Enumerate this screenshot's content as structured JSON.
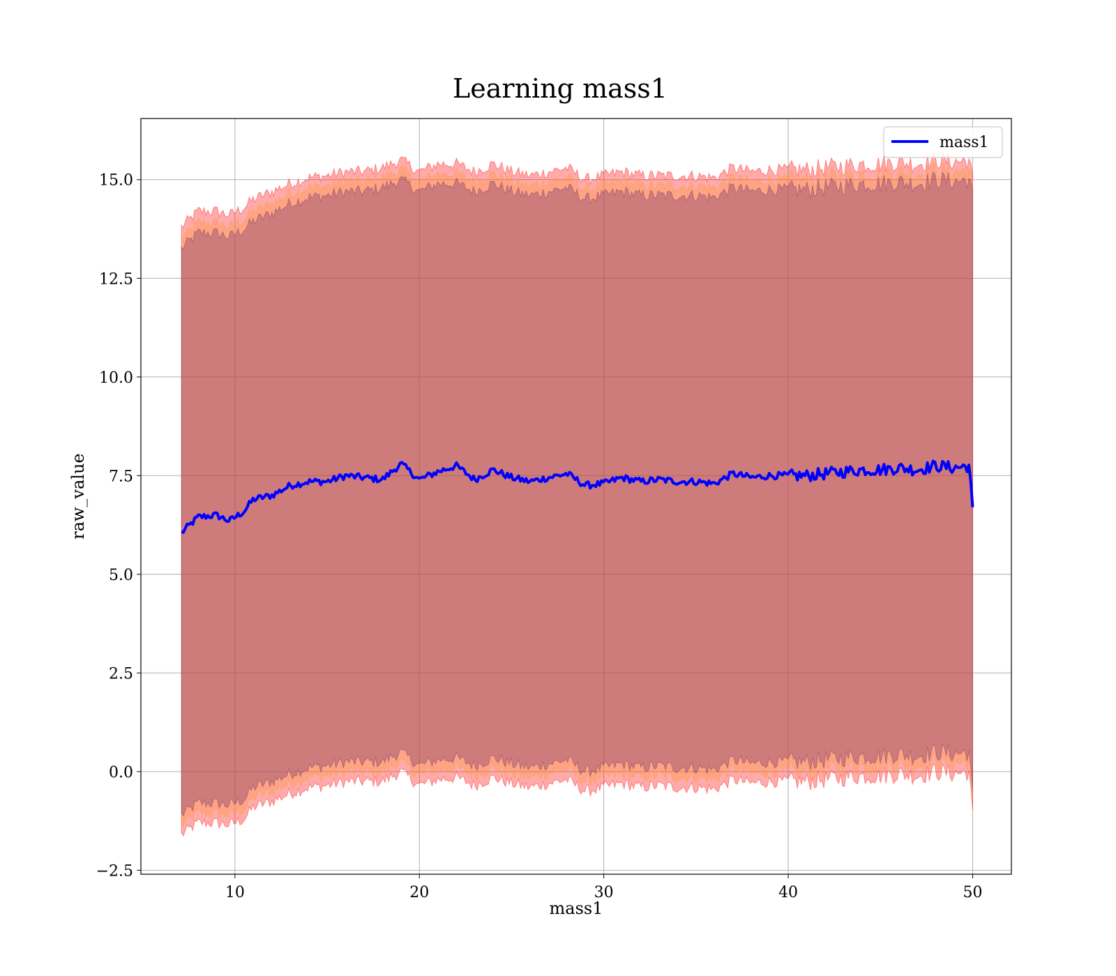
{
  "chart_data": {
    "type": "line",
    "title": "Learning mass1",
    "xlabel": "mass1",
    "ylabel": "raw_value",
    "xlim": [
      4.9,
      52.1
    ],
    "ylim": [
      -2.6,
      16.55
    ],
    "x_ticks": [
      10,
      20,
      30,
      40,
      50
    ],
    "x_tick_labels": [
      "10",
      "20",
      "30",
      "40",
      "50"
    ],
    "y_ticks": [
      -2.5,
      0.0,
      2.5,
      5.0,
      7.5,
      10.0,
      12.5,
      15.0
    ],
    "y_tick_labels": [
      "−2.5",
      "0.0",
      "2.5",
      "5.0",
      "7.5",
      "10.0",
      "12.5",
      "15.0"
    ],
    "grid": true,
    "legend_position": "top-right",
    "series": [
      {
        "name": "mass1",
        "color": "#0000ff",
        "x": [
          7.1,
          8.0,
          9.0,
          9.7,
          10.5,
          11.0,
          12.0,
          13.0,
          14.0,
          15.0,
          16.0,
          17.0,
          18.0,
          19.0,
          20.0,
          21.0,
          22.0,
          23.0,
          24.0,
          25.0,
          26.0,
          27.0,
          28.0,
          29.0,
          30.0,
          31.0,
          32.0,
          33.0,
          34.0,
          35.0,
          36.0,
          37.0,
          38.0,
          39.0,
          40.0,
          41.0,
          42.0,
          43.0,
          44.0,
          45.0,
          46.0,
          47.0,
          48.0,
          49.0,
          49.8,
          50.0
        ],
        "values": [
          6.05,
          6.45,
          6.5,
          6.35,
          6.6,
          6.9,
          7.0,
          7.25,
          7.35,
          7.35,
          7.5,
          7.45,
          7.4,
          7.8,
          7.4,
          7.6,
          7.75,
          7.4,
          7.65,
          7.45,
          7.35,
          7.45,
          7.55,
          7.25,
          7.3,
          7.45,
          7.35,
          7.4,
          7.35,
          7.35,
          7.3,
          7.55,
          7.45,
          7.5,
          7.5,
          7.5,
          7.55,
          7.6,
          7.65,
          7.65,
          7.7,
          7.65,
          7.75,
          7.7,
          7.75,
          6.7
        ]
      }
    ],
    "bands": [
      {
        "color": "#ff0000",
        "x": [
          7.1,
          8.0,
          9.0,
          9.7,
          10.5,
          11.0,
          12.0,
          13.0,
          14.0,
          15.0,
          16.0,
          17.0,
          18.0,
          19.0,
          20.0,
          21.0,
          22.0,
          23.0,
          24.0,
          25.0,
          26.0,
          27.0,
          28.0,
          29.0,
          30.0,
          31.0,
          32.0,
          33.0,
          34.0,
          35.0,
          36.0,
          37.0,
          38.0,
          39.0,
          40.0,
          41.0,
          42.0,
          43.0,
          44.0,
          45.0,
          46.0,
          47.0,
          48.0,
          49.0,
          49.8,
          50.0
        ],
        "upper": [
          13.8,
          14.2,
          14.2,
          14.1,
          14.3,
          14.5,
          14.7,
          14.9,
          15.05,
          15.1,
          15.2,
          15.2,
          15.3,
          15.5,
          15.2,
          15.4,
          15.4,
          15.2,
          15.4,
          15.2,
          15.1,
          15.2,
          15.3,
          15.0,
          15.1,
          15.2,
          15.1,
          15.1,
          15.1,
          15.1,
          15.05,
          15.3,
          15.2,
          15.25,
          15.25,
          15.25,
          15.3,
          15.35,
          15.4,
          15.4,
          15.45,
          15.4,
          15.5,
          15.45,
          15.5,
          15.0
        ],
        "lower": [
          -1.6,
          -1.3,
          -1.3,
          -1.35,
          -1.2,
          -0.9,
          -0.75,
          -0.55,
          -0.4,
          -0.35,
          -0.25,
          -0.25,
          -0.25,
          0.0,
          -0.35,
          -0.2,
          -0.15,
          -0.35,
          -0.15,
          -0.3,
          -0.4,
          -0.3,
          -0.2,
          -0.5,
          -0.4,
          -0.3,
          -0.4,
          -0.35,
          -0.4,
          -0.4,
          -0.45,
          -0.2,
          -0.3,
          -0.25,
          -0.25,
          -0.25,
          -0.2,
          -0.15,
          -0.1,
          -0.1,
          -0.05,
          -0.1,
          0.0,
          -0.05,
          0.0,
          -1.1
        ]
      },
      {
        "color": "#ff9933",
        "x": [
          7.1,
          8.0,
          9.0,
          9.7,
          10.5,
          11.0,
          12.0,
          13.0,
          14.0,
          15.0,
          16.0,
          17.0,
          18.0,
          19.0,
          20.0,
          21.0,
          22.0,
          23.0,
          24.0,
          25.0,
          26.0,
          27.0,
          28.0,
          29.0,
          30.0,
          31.0,
          32.0,
          33.0,
          34.0,
          35.0,
          36.0,
          37.0,
          38.0,
          39.0,
          40.0,
          41.0,
          42.0,
          43.0,
          44.0,
          45.0,
          46.0,
          47.0,
          48.0,
          49.0,
          49.8,
          50.0
        ],
        "upper": [
          13.5,
          13.9,
          13.9,
          13.8,
          14.0,
          14.2,
          14.4,
          14.65,
          14.8,
          14.85,
          14.95,
          14.95,
          15.05,
          15.25,
          14.95,
          15.15,
          15.15,
          14.95,
          15.15,
          14.95,
          14.85,
          14.95,
          15.05,
          14.75,
          14.85,
          14.95,
          14.85,
          14.85,
          14.85,
          14.85,
          14.8,
          15.05,
          14.95,
          15.0,
          15.0,
          15.0,
          15.05,
          15.1,
          15.15,
          15.15,
          15.2,
          15.15,
          15.25,
          15.2,
          15.25,
          14.8
        ],
        "lower": [
          -1.35,
          -1.05,
          -1.05,
          -1.1,
          -0.95,
          -0.65,
          -0.5,
          -0.3,
          -0.15,
          -0.1,
          0.0,
          0.0,
          0.0,
          0.25,
          -0.1,
          0.05,
          0.1,
          -0.1,
          0.1,
          -0.05,
          -0.15,
          -0.05,
          0.05,
          -0.25,
          -0.15,
          -0.05,
          -0.15,
          -0.1,
          -0.15,
          -0.15,
          -0.2,
          0.05,
          -0.05,
          0.0,
          0.0,
          0.0,
          0.05,
          0.1,
          0.15,
          0.15,
          0.2,
          0.15,
          0.25,
          0.2,
          0.25,
          -0.8
        ]
      },
      {
        "color": "#6a2a6a",
        "x": [
          7.1,
          8.0,
          9.0,
          9.7,
          10.5,
          11.0,
          12.0,
          13.0,
          14.0,
          15.0,
          16.0,
          17.0,
          18.0,
          19.0,
          20.0,
          21.0,
          22.0,
          23.0,
          24.0,
          25.0,
          26.0,
          27.0,
          28.0,
          29.0,
          30.0,
          31.0,
          32.0,
          33.0,
          34.0,
          35.0,
          36.0,
          37.0,
          38.0,
          39.0,
          40.0,
          41.0,
          42.0,
          43.0,
          44.0,
          45.0,
          46.0,
          47.0,
          48.0,
          49.0,
          49.8,
          50.0
        ],
        "upper": [
          13.25,
          13.65,
          13.65,
          13.55,
          13.75,
          13.95,
          14.15,
          14.4,
          14.55,
          14.6,
          14.7,
          14.7,
          14.8,
          15.0,
          14.7,
          14.9,
          14.9,
          14.7,
          14.9,
          14.7,
          14.6,
          14.7,
          14.8,
          14.5,
          14.6,
          14.7,
          14.6,
          14.6,
          14.6,
          14.6,
          14.55,
          14.8,
          14.7,
          14.75,
          14.75,
          14.75,
          14.8,
          14.85,
          14.9,
          14.9,
          14.95,
          14.9,
          15.0,
          14.95,
          15.0,
          14.6
        ],
        "lower": [
          -1.1,
          -0.8,
          -0.8,
          -0.85,
          -0.7,
          -0.4,
          -0.25,
          -0.05,
          0.1,
          0.15,
          0.25,
          0.25,
          0.25,
          0.5,
          0.15,
          0.3,
          0.35,
          0.15,
          0.35,
          0.2,
          0.1,
          0.2,
          0.3,
          0.0,
          0.1,
          0.2,
          0.1,
          0.15,
          0.1,
          0.1,
          0.05,
          0.3,
          0.2,
          0.25,
          0.25,
          0.25,
          0.3,
          0.35,
          0.4,
          0.4,
          0.45,
          0.4,
          0.5,
          0.45,
          0.5,
          -0.6
        ]
      }
    ]
  }
}
